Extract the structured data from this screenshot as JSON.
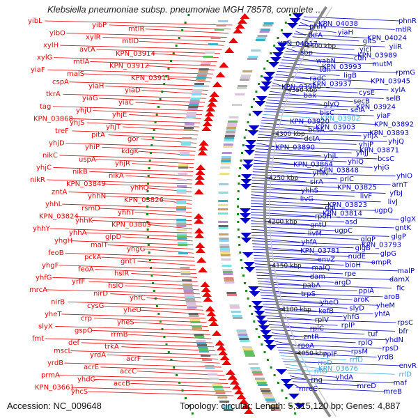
{
  "title": "Klebsiella pneumoniae subsp. pneumoniae MGH 78578, complete ...",
  "footer": {
    "accession": "Accession: NC_009648",
    "summary": "Topology: circular; Length: 5,315,120 bp; Genes: 4,887"
  },
  "colors": {
    "forward_strand": "#ee0000",
    "reverse_strand": "#0000cc",
    "rna_gene": "#33aadd",
    "backbone": "#888888",
    "gc_dots": "#118811"
  },
  "scale_ticks": [
    "4400 kbp",
    "4350 kbp",
    "4300 kbp",
    "4250 kbp",
    "4200 kbp",
    "4150 kbp",
    "4100 kbp",
    "4050 kbp"
  ],
  "genes_left": [
    "yibL",
    "yibP",
    "mtlR",
    "yibO",
    "xylR",
    "mtlD",
    "xylH",
    "avtA",
    "KPN_03914",
    "xylG",
    "mtlA",
    "KPN_03912",
    "yiaF",
    "malS",
    "KPN_03911",
    "cspA",
    "yiaH",
    "yiaD",
    "tkrA",
    "yiaG",
    "yiaC",
    "tag",
    "yhjU",
    "yhjE",
    "KPN_03868",
    "yhjS",
    "yhjT",
    "treF",
    "pitA",
    "gor",
    "yhjD",
    "yhiP",
    "kdgK",
    "nikC",
    "uspA",
    "yhjR",
    "yhjC",
    "nikB",
    "nikA",
    "nikR",
    "KPN_03849",
    "yhhQ",
    "zntA",
    "yhhN",
    "KPN_03826",
    "yhhL",
    "rsmD",
    "yhhT",
    "KPN_03824",
    "yhhK",
    "KPN_03805",
    "yhhY",
    "yhhA",
    "glpD",
    "yhgH",
    "malT",
    "yhgG",
    "feoB",
    "pckA",
    "gntT",
    "yhgF",
    "feoA",
    "hslR",
    "yhfG",
    "yrfF",
    "hslO",
    "mrcA",
    "nirD",
    "yhfC",
    "nirB",
    "cysG",
    "yheU",
    "yheT",
    "crp",
    "yheS",
    "slyX",
    "gspO",
    "rrmB",
    "fmt",
    "def",
    "trkA",
    "mscL",
    "yrdA",
    "acrF",
    "yrdB",
    "acrE",
    "accC",
    "prmA",
    "yhdG",
    "accB",
    "KPN_03661",
    "yhcS"
  ],
  "genes_right": [
    "phnR",
    "KPN_04038",
    "phnV",
    "mtlR",
    "yiaH",
    "tkrA",
    "KPN_04024",
    "gltS",
    "KPN_04017",
    "yiiR",
    "yicI",
    "sbp",
    "KPN_03989",
    "cdh",
    "wabN",
    "mutM",
    "KPN_03993",
    "tdh",
    "rpmG",
    "ligB",
    "radC",
    "KPN_03945",
    "KPN_03937",
    "KPN_03960",
    "xylA",
    "cysE",
    "bax",
    "selB",
    "secB",
    "glyQ",
    "KPN_03924",
    "selA",
    "bisC",
    "yiaF",
    "KPN_03902",
    "KPN_03920",
    "KPN_03892",
    "KPN_03903",
    "bcsA",
    "KPN_03893",
    "yhjX",
    "dctA",
    "yhjQ",
    "yhjP",
    "KPN_03890",
    "KPN_03871",
    "yhjJ",
    "yhjL",
    "bcsC",
    "yhiQ",
    "KPN_03864",
    "yhjG",
    "KPN_03848",
    "yhiN",
    "yhiO",
    "prlC",
    "sirA",
    "arnT",
    "KPN_03825",
    "yhhS",
    "yfbJ",
    "livF",
    "livG",
    "livJ",
    "KPN_03823",
    "ggt",
    "ugpQ",
    "KPN_03814",
    "rpoH",
    "glgX",
    "asd",
    "gntU",
    "gntK",
    "ugpC",
    "livM",
    "glgP",
    "glgP",
    "yhfA",
    "KPN_03793",
    "glgB",
    "KPN_03781",
    "glpG",
    "nudE",
    "envZ",
    "ompR",
    "bioH",
    "malQ",
    "malP",
    "rpe",
    "dam",
    "damX",
    "argD",
    "pabA",
    "fic",
    "ppiA",
    "trpS",
    "aroB",
    "aroK",
    "yheO",
    "yheM",
    "slyD",
    "kefB",
    "yhfA",
    "yhfG",
    "rplV",
    "rpsC",
    "rplP",
    "rplC",
    "bfr",
    "tuf",
    "zntR",
    "yhdN",
    "rplQ",
    "rpoA",
    "rpsD",
    "rpsM",
    "rplF",
    "yrdB",
    "rrfD",
    "rrsD",
    "envR",
    "KPN_03676",
    "rrfD",
    "rrlD",
    "yhdA",
    "rng",
    "maf",
    "mreD",
    "mreC",
    "mreB"
  ],
  "highlight_genes": [
    "KPN_03902",
    "rrfD",
    "rrsD",
    "KPN_03676",
    "rrlD"
  ]
}
